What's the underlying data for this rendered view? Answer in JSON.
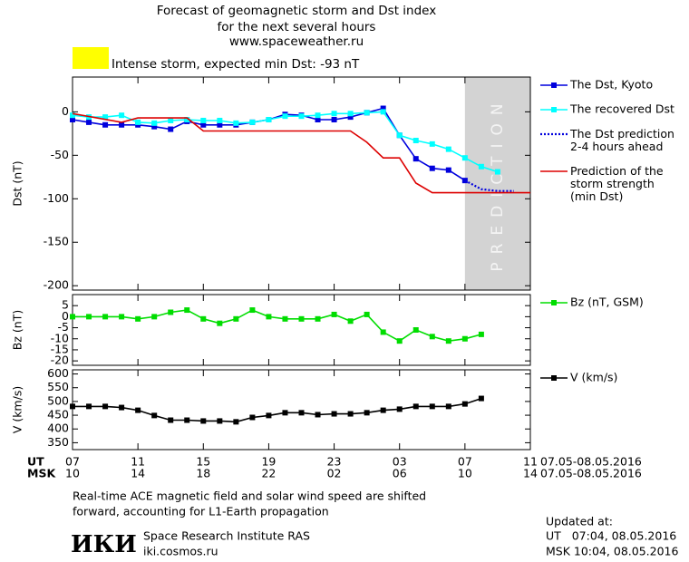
{
  "header": {
    "title_lines": [
      "Forecast of geomagnetic storm and Dst index",
      "for the next several hours",
      "www.spaceweather.ru"
    ],
    "storm_label": "Intense storm, expected min Dst: -93 nT",
    "storm_color": "#ffff00"
  },
  "chart_data": [
    {
      "type": "line",
      "ylabel": "Dst (nT)",
      "xlim": [
        0,
        28
      ],
      "ylim": [
        -205,
        40
      ],
      "yticks": [
        0,
        -50,
        -100,
        -150,
        -200
      ],
      "prediction": {
        "label": "PREDICTION",
        "xlim": [
          24,
          28
        ],
        "color": "#d3d3d3"
      },
      "series": [
        {
          "name": "The Dst, Kyoto",
          "color": "#0000dd",
          "marker": "square",
          "x": [
            0,
            1,
            2,
            3,
            4,
            5,
            6,
            7,
            8,
            9,
            10,
            11,
            12,
            13,
            14,
            15,
            16,
            17,
            18,
            19,
            20,
            21,
            22,
            23,
            24
          ],
          "values": [
            -9,
            -12,
            -15,
            -15,
            -15,
            -17,
            -20,
            -11,
            -15,
            -15,
            -15,
            -12,
            -9,
            -3,
            -4,
            -9,
            -9,
            -6,
            -1,
            4,
            -27,
            -54,
            -65,
            -67,
            -79
          ]
        },
        {
          "name": "The recovered Dst",
          "color": "#00ffff",
          "marker": "square",
          "x": [
            0,
            1,
            2,
            3,
            4,
            5,
            6,
            7,
            8,
            9,
            10,
            11,
            12,
            13,
            14,
            15,
            16,
            17,
            18,
            19,
            20,
            21,
            22,
            23,
            24,
            25,
            26
          ],
          "values": [
            -4,
            -6,
            -6,
            -4,
            -12,
            -13,
            -10,
            -9,
            -10,
            -10,
            -13,
            -12,
            -9,
            -5,
            -5,
            -4,
            -2,
            -2,
            -1,
            0,
            -27,
            -33,
            -37,
            -43,
            -53,
            -63,
            -69
          ]
        },
        {
          "name": "The Dst prediction\n2-4 hours ahead",
          "color": "#0000dd",
          "dash": "dotted",
          "x": [
            24,
            25,
            26,
            27
          ],
          "values": [
            -79,
            -89,
            -91,
            -91
          ]
        },
        {
          "name": "Prediction of the\nstorm strength\n(min Dst)",
          "color": "#dd0000",
          "x": [
            0,
            3,
            4,
            7,
            8,
            17,
            18,
            19,
            20,
            21,
            22,
            28
          ],
          "values": [
            -2,
            -12,
            -7,
            -7,
            -22,
            -22,
            -35,
            -53,
            -53,
            -82,
            -93,
            -93
          ]
        }
      ]
    },
    {
      "type": "line",
      "ylabel": "Bz (nT)",
      "xlim": [
        0,
        28
      ],
      "ylim": [
        -22,
        10
      ],
      "yticks": [
        5,
        0,
        -5,
        -10,
        -15,
        -20
      ],
      "series": [
        {
          "name": "Bz (nT, GSM)",
          "color": "#00dd00",
          "marker": "square",
          "x": [
            0,
            1,
            2,
            3,
            4,
            5,
            6,
            7,
            8,
            9,
            10,
            11,
            12,
            13,
            14,
            15,
            16,
            17,
            18,
            19,
            20,
            21,
            22,
            23,
            24,
            25
          ],
          "values": [
            0,
            0,
            0,
            0,
            -1,
            0,
            2,
            3,
            -1,
            -3,
            -1,
            3,
            0,
            -1,
            -1,
            -1,
            1,
            -2,
            1,
            -7,
            -11,
            -6,
            -9,
            -11,
            -10,
            -8
          ]
        }
      ]
    },
    {
      "type": "line",
      "ylabel": "V (km/s)",
      "xlim": [
        0,
        28
      ],
      "ylim": [
        325,
        615
      ],
      "yticks": [
        600,
        550,
        500,
        450,
        400,
        350
      ],
      "xticks": [
        {
          "value": 0,
          "label": "07"
        },
        {
          "value": 4,
          "label": "11"
        },
        {
          "value": 8,
          "label": "15"
        },
        {
          "value": 12,
          "label": "19"
        },
        {
          "value": 16,
          "label": "23"
        },
        {
          "value": 20,
          "label": "03"
        },
        {
          "value": 24,
          "label": "07"
        },
        {
          "value": 28,
          "label": "11"
        }
      ],
      "x_rows": [
        {
          "name": "UT",
          "date": "07.05-08.05.2016"
        },
        {
          "name": "MSK",
          "date": "07.05-08.05.2016",
          "labels": [
            "10",
            "14",
            "18",
            "22",
            "02",
            "06",
            "10",
            "14"
          ]
        }
      ],
      "series": [
        {
          "name": "V (km/s)",
          "color": "#000000",
          "marker": "square",
          "x": [
            0,
            1,
            2,
            3,
            4,
            5,
            6,
            7,
            8,
            9,
            10,
            11,
            12,
            13,
            14,
            15,
            16,
            17,
            18,
            19,
            20,
            21,
            22,
            23,
            24,
            25
          ],
          "values": [
            482,
            482,
            482,
            478,
            468,
            449,
            432,
            432,
            429,
            429,
            426,
            442,
            449,
            459,
            459,
            452,
            455,
            455,
            459,
            468,
            472,
            482,
            482,
            482,
            491,
            511
          ]
        }
      ]
    }
  ],
  "footer": {
    "note_lines": [
      "Real-time ACE magnetic field and solar wind speed are shifted",
      "forward, accounting for L1-Earth propagation"
    ],
    "logo": "ИКИ",
    "institute": "Space Research Institute RAS",
    "site": "iki.cosmos.ru",
    "updated_label": "Updated at:",
    "updated_ut": "UT   07:04, 08.05.2016",
    "updated_msk": "MSK 10:04, 08.05.2016"
  }
}
